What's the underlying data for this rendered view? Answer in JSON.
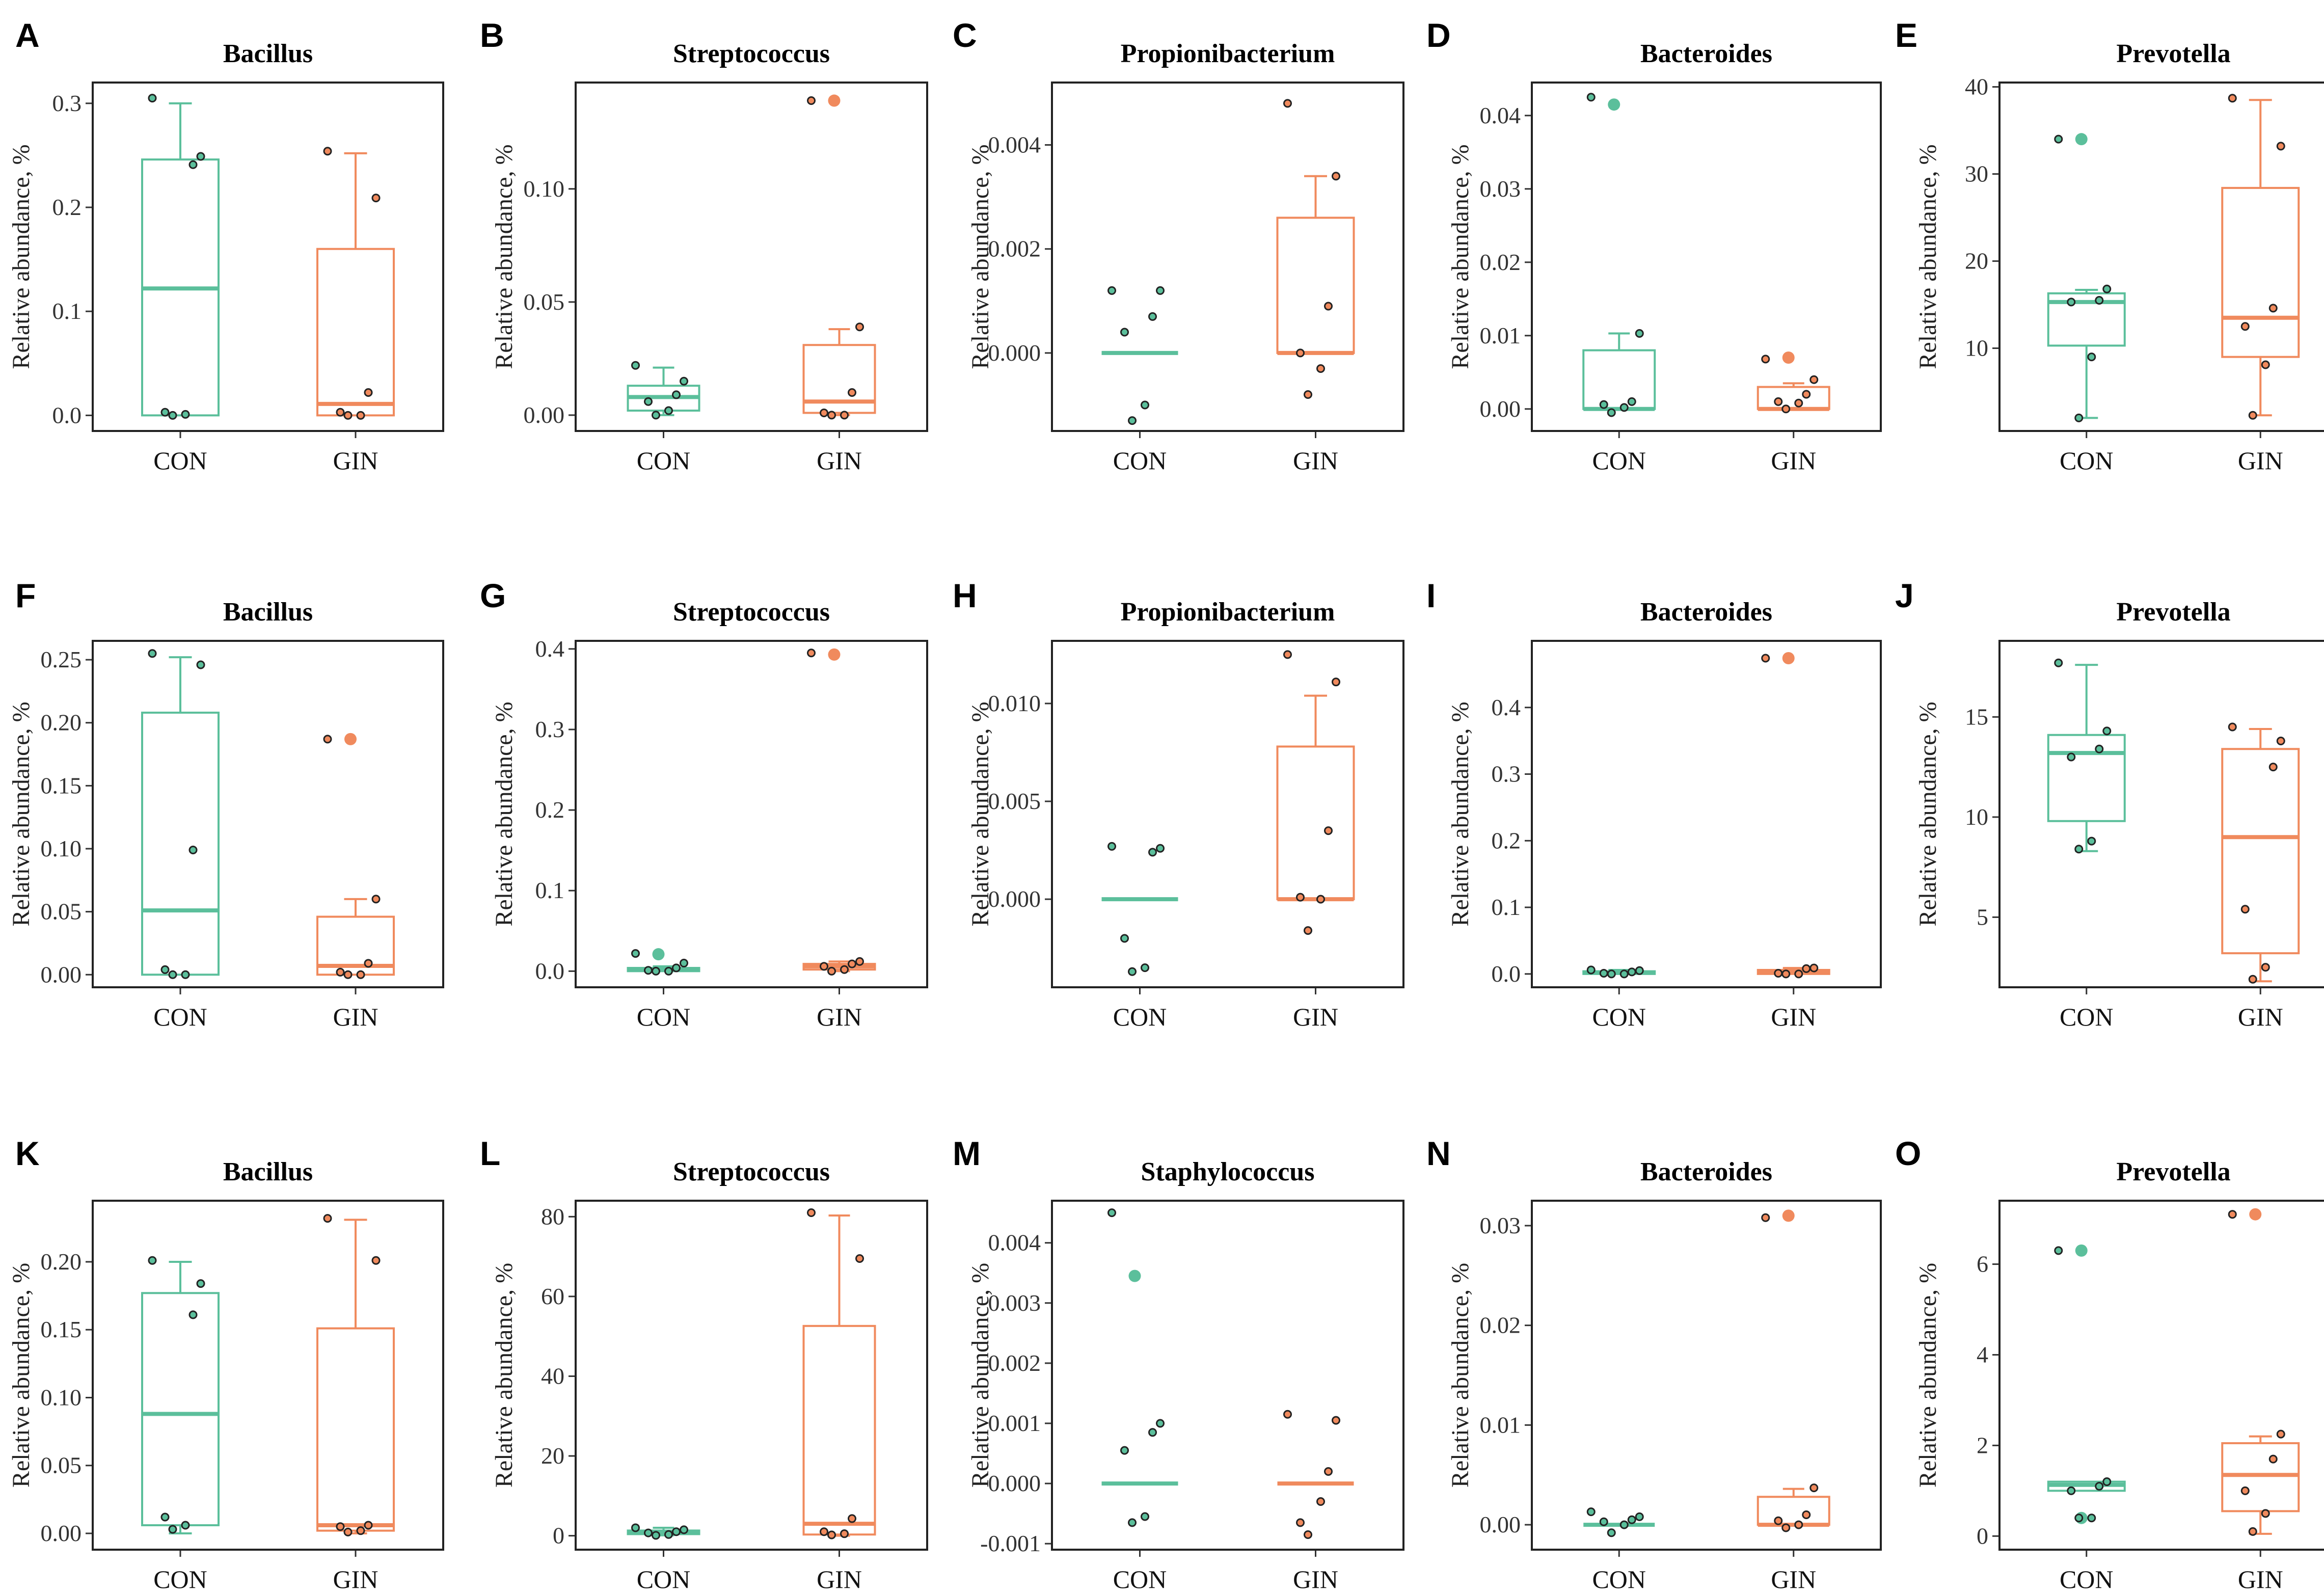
{
  "colors": {
    "con": "#5bbf9b",
    "gin": "#f08a5d",
    "point_stroke": "#222222"
  },
  "chart_data": [
    {
      "letter": "A",
      "title": "Bacillus",
      "type": "box",
      "ylabel": "Relative abundance, %",
      "ylim": [
        -0.015,
        0.32
      ],
      "ticks": [
        0.0,
        0.1,
        0.2,
        0.3
      ],
      "tick_labels": [
        "0.0",
        "0.1",
        "0.2",
        "0.3"
      ],
      "categories": [
        "CON",
        "GIN"
      ],
      "groups": [
        {
          "name": "CON",
          "q1": 0.0,
          "median": 0.122,
          "q3": 0.246,
          "whisker_low": 0.0,
          "whisker_high": 0.3,
          "points": [
            0.305,
            0.249,
            0.241,
            0.003,
            0.001,
            0.0
          ],
          "outliers": []
        },
        {
          "name": "GIN",
          "q1": 0.0,
          "median": 0.011,
          "q3": 0.16,
          "whisker_low": 0.0,
          "whisker_high": 0.252,
          "points": [
            0.254,
            0.209,
            0.022,
            0.003,
            0.0,
            0.0
          ],
          "outliers": []
        }
      ]
    },
    {
      "letter": "B",
      "title": "Streptococcus",
      "type": "box",
      "ylabel": "Relative abundance, %",
      "ylim": [
        -0.007,
        0.147
      ],
      "ticks": [
        0.0,
        0.05,
        0.1
      ],
      "tick_labels": [
        "0.00",
        "0.05",
        "0.10"
      ],
      "categories": [
        "CON",
        "GIN"
      ],
      "groups": [
        {
          "name": "CON",
          "q1": 0.002,
          "median": 0.008,
          "q3": 0.013,
          "whisker_low": 0.0,
          "whisker_high": 0.021,
          "points": [
            0.022,
            0.015,
            0.009,
            0.006,
            0.002,
            0.0
          ],
          "outliers": []
        },
        {
          "name": "GIN",
          "q1": 0.001,
          "median": 0.006,
          "q3": 0.031,
          "whisker_low": 0.0,
          "whisker_high": 0.038,
          "points": [
            0.139,
            0.039,
            0.01,
            0.001,
            0.0,
            0.0
          ],
          "outliers": [
            0.139
          ]
        }
      ]
    },
    {
      "letter": "C",
      "title": "Propionibacterium",
      "type": "box",
      "ylabel": "Relative abundance, %",
      "ylim": [
        -0.0015,
        0.0052
      ],
      "ticks": [
        0.0,
        0.002,
        0.004
      ],
      "tick_labels": [
        "0.000",
        "0.002",
        "0.004"
      ],
      "categories": [
        "CON",
        "GIN"
      ],
      "groups": [
        {
          "name": "CON",
          "q1": 0.0,
          "median": 0.0,
          "q3": 0.0,
          "whisker_low": 0.0,
          "whisker_high": 0.0,
          "points": [
            0.0012,
            0.0012,
            0.0007,
            0.0004,
            -0.001,
            -0.0013
          ],
          "outliers": []
        },
        {
          "name": "GIN",
          "q1": 0.0,
          "median": 0.0,
          "q3": 0.0026,
          "whisker_low": 0.0,
          "whisker_high": 0.0034,
          "points": [
            0.0048,
            0.0034,
            0.0009,
            0.0,
            -0.0003,
            -0.0008
          ],
          "outliers": []
        }
      ]
    },
    {
      "letter": "D",
      "title": "Bacteroides",
      "type": "box",
      "ylabel": "Relative abundance, %",
      "ylim": [
        -0.003,
        0.0445
      ],
      "ticks": [
        0.0,
        0.01,
        0.02,
        0.03,
        0.04
      ],
      "tick_labels": [
        "0.00",
        "0.01",
        "0.02",
        "0.03",
        "0.04"
      ],
      "categories": [
        "CON",
        "GIN"
      ],
      "groups": [
        {
          "name": "CON",
          "q1": 0.0,
          "median": 0.0,
          "q3": 0.008,
          "whisker_low": 0.0,
          "whisker_high": 0.0103,
          "points": [
            0.0425,
            0.0103,
            0.001,
            0.0006,
            0.0002,
            -0.0005
          ],
          "outliers": [
            0.0415
          ]
        },
        {
          "name": "GIN",
          "q1": 0.0,
          "median": 0.0,
          "q3": 0.003,
          "whisker_low": 0.0,
          "whisker_high": 0.0035,
          "points": [
            0.0068,
            0.004,
            0.002,
            0.001,
            0.0008,
            0.0
          ],
          "outliers": [
            0.007
          ]
        }
      ]
    },
    {
      "letter": "E",
      "title": "Prevotella",
      "type": "box",
      "ylabel": "Relative abundance, %",
      "ylim": [
        0.5,
        40.5
      ],
      "ticks": [
        10,
        20,
        30,
        40
      ],
      "tick_labels": [
        "10",
        "20",
        "30",
        "40"
      ],
      "categories": [
        "CON",
        "GIN"
      ],
      "groups": [
        {
          "name": "CON",
          "q1": 10.3,
          "median": 15.3,
          "q3": 16.3,
          "whisker_low": 2.0,
          "whisker_high": 16.7,
          "points": [
            34.0,
            16.8,
            15.5,
            15.3,
            9.0,
            2.0
          ],
          "outliers": [
            34.0
          ]
        },
        {
          "name": "GIN",
          "q1": 9.0,
          "median": 13.5,
          "q3": 28.4,
          "whisker_low": 2.3,
          "whisker_high": 38.5,
          "points": [
            38.7,
            33.2,
            14.6,
            12.5,
            8.1,
            2.3
          ],
          "outliers": []
        }
      ]
    },
    {
      "letter": "F",
      "title": "Bacillus",
      "type": "box",
      "ylabel": "Relative abundance, %",
      "ylim": [
        -0.01,
        0.265
      ],
      "ticks": [
        0.0,
        0.05,
        0.1,
        0.15,
        0.2,
        0.25
      ],
      "tick_labels": [
        "0.00",
        "0.05",
        "0.10",
        "0.15",
        "0.20",
        "0.25"
      ],
      "categories": [
        "CON",
        "GIN"
      ],
      "groups": [
        {
          "name": "CON",
          "q1": 0.0,
          "median": 0.051,
          "q3": 0.208,
          "whisker_low": 0.0,
          "whisker_high": 0.252,
          "points": [
            0.255,
            0.246,
            0.099,
            0.004,
            0.0,
            0.0
          ],
          "outliers": []
        },
        {
          "name": "GIN",
          "q1": 0.0,
          "median": 0.007,
          "q3": 0.046,
          "whisker_low": 0.0,
          "whisker_high": 0.06,
          "points": [
            0.187,
            0.06,
            0.009,
            0.002,
            0.0,
            0.0
          ],
          "outliers": [
            0.187
          ]
        }
      ]
    },
    {
      "letter": "G",
      "title": "Streptococcus",
      "type": "box",
      "ylabel": "Relative abundance, %",
      "ylim": [
        -0.02,
        0.41
      ],
      "ticks": [
        0.0,
        0.1,
        0.2,
        0.3,
        0.4
      ],
      "tick_labels": [
        "0.0",
        "0.1",
        "0.2",
        "0.3",
        "0.4"
      ],
      "categories": [
        "CON",
        "GIN"
      ],
      "groups": [
        {
          "name": "CON",
          "q1": 0.0,
          "median": 0.002,
          "q3": 0.004,
          "whisker_low": 0.0,
          "whisker_high": 0.006,
          "points": [
            0.022,
            0.01,
            0.004,
            0.001,
            0.0,
            0.0
          ],
          "outliers": [
            0.021
          ]
        },
        {
          "name": "GIN",
          "q1": 0.002,
          "median": 0.006,
          "q3": 0.009,
          "whisker_low": 0.0,
          "whisker_high": 0.012,
          "points": [
            0.395,
            0.012,
            0.009,
            0.006,
            0.002,
            0.0
          ],
          "outliers": [
            0.393
          ]
        }
      ]
    },
    {
      "letter": "H",
      "title": "Propionibacterium",
      "type": "box",
      "ylabel": "Relative abundance, %",
      "ylim": [
        -0.0045,
        0.0132
      ],
      "ticks": [
        0.0,
        0.005,
        0.01
      ],
      "tick_labels": [
        "0.000",
        "0.005",
        "0.010"
      ],
      "categories": [
        "CON",
        "GIN"
      ],
      "groups": [
        {
          "name": "CON",
          "q1": 0.0,
          "median": 0.0,
          "q3": 0.0,
          "whisker_low": 0.0,
          "whisker_high": 0.0,
          "points": [
            0.0027,
            0.0026,
            0.0024,
            -0.002,
            -0.0035,
            -0.0037
          ],
          "outliers": []
        },
        {
          "name": "GIN",
          "q1": 0.0,
          "median": 0.0,
          "q3": 0.0078,
          "whisker_low": 0.0,
          "whisker_high": 0.0104,
          "points": [
            0.0125,
            0.0111,
            0.0035,
            0.0001,
            0.0,
            -0.0016
          ],
          "outliers": []
        }
      ]
    },
    {
      "letter": "I",
      "title": "Bacteroides",
      "type": "box",
      "ylabel": "Relative abundance, %",
      "ylim": [
        -0.02,
        0.5
      ],
      "ticks": [
        0.0,
        0.1,
        0.2,
        0.3,
        0.4
      ],
      "tick_labels": [
        "0.0",
        "0.1",
        "0.2",
        "0.3",
        "0.4"
      ],
      "categories": [
        "CON",
        "GIN"
      ],
      "groups": [
        {
          "name": "CON",
          "q1": 0.0,
          "median": 0.002,
          "q3": 0.004,
          "whisker_low": 0.0,
          "whisker_high": 0.006,
          "points": [
            0.006,
            0.005,
            0.003,
            0.001,
            0.0,
            0.0
          ],
          "outliers": []
        },
        {
          "name": "GIN",
          "q1": 0.0,
          "median": 0.003,
          "q3": 0.006,
          "whisker_low": 0.0,
          "whisker_high": 0.009,
          "points": [
            0.474,
            0.009,
            0.008,
            0.001,
            0.0,
            0.0
          ],
          "outliers": [
            0.474
          ]
        }
      ]
    },
    {
      "letter": "J",
      "title": "Prevotella",
      "type": "box",
      "ylabel": "Relative abundance, %",
      "ylim": [
        1.5,
        18.8
      ],
      "ticks": [
        5,
        10,
        15
      ],
      "tick_labels": [
        "5",
        "10",
        "15"
      ],
      "categories": [
        "CON",
        "GIN"
      ],
      "groups": [
        {
          "name": "CON",
          "q1": 9.8,
          "median": 13.2,
          "q3": 14.1,
          "whisker_low": 8.3,
          "whisker_high": 17.6,
          "points": [
            17.7,
            14.3,
            13.4,
            13.0,
            8.8,
            8.4
          ],
          "outliers": []
        },
        {
          "name": "GIN",
          "q1": 3.2,
          "median": 9.0,
          "q3": 13.4,
          "whisker_low": 1.8,
          "whisker_high": 14.4,
          "points": [
            14.5,
            13.8,
            12.5,
            5.4,
            2.5,
            1.9
          ],
          "outliers": []
        }
      ]
    },
    {
      "letter": "K",
      "title": "Bacillus",
      "type": "box",
      "ylabel": "Relative abundance, %",
      "ylim": [
        -0.012,
        0.245
      ],
      "ticks": [
        0.0,
        0.05,
        0.1,
        0.15,
        0.2
      ],
      "tick_labels": [
        "0.00",
        "0.05",
        "0.10",
        "0.15",
        "0.20"
      ],
      "categories": [
        "CON",
        "GIN"
      ],
      "groups": [
        {
          "name": "CON",
          "q1": 0.006,
          "median": 0.088,
          "q3": 0.177,
          "whisker_low": 0.0,
          "whisker_high": 0.2,
          "points": [
            0.201,
            0.184,
            0.161,
            0.012,
            0.006,
            0.003
          ],
          "outliers": []
        },
        {
          "name": "GIN",
          "q1": 0.002,
          "median": 0.006,
          "q3": 0.151,
          "whisker_low": 0.0,
          "whisker_high": 0.231,
          "points": [
            0.232,
            0.201,
            0.006,
            0.005,
            0.002,
            0.001
          ],
          "outliers": []
        }
      ]
    },
    {
      "letter": "L",
      "title": "Streptococcus",
      "type": "box",
      "ylabel": "Relative abundance, %",
      "ylim": [
        -3.5,
        84
      ],
      "ticks": [
        0,
        20,
        40,
        60,
        80
      ],
      "tick_labels": [
        "0",
        "20",
        "40",
        "60",
        "80"
      ],
      "categories": [
        "CON",
        "GIN"
      ],
      "groups": [
        {
          "name": "CON",
          "q1": 0.4,
          "median": 0.8,
          "q3": 1.3,
          "whisker_low": 0.1,
          "whisker_high": 2.0,
          "points": [
            2.0,
            1.5,
            1.0,
            0.7,
            0.3,
            0.1
          ],
          "outliers": []
        },
        {
          "name": "GIN",
          "q1": 0.3,
          "median": 3.0,
          "q3": 52.6,
          "whisker_low": 0.0,
          "whisker_high": 80.3,
          "points": [
            81.0,
            69.5,
            4.3,
            1.0,
            0.5,
            0.2
          ],
          "outliers": []
        }
      ]
    },
    {
      "letter": "M",
      "title": "Staphylococcus",
      "type": "box",
      "ylabel": "Relative abundance, %",
      "ylim": [
        -0.0011,
        0.0047
      ],
      "ticks": [
        -0.001,
        0.0,
        0.001,
        0.002,
        0.003,
        0.004
      ],
      "tick_labels": [
        "-0.001",
        "0.000",
        "0.001",
        "0.002",
        "0.003",
        "0.004"
      ],
      "categories": [
        "CON",
        "GIN"
      ],
      "groups": [
        {
          "name": "CON",
          "q1": 0.0,
          "median": 0.0,
          "q3": 0.0,
          "whisker_low": 0.0,
          "whisker_high": 0.0,
          "points": [
            0.0045,
            0.001,
            0.00085,
            0.00055,
            -0.00055,
            -0.00065
          ],
          "outliers": [
            0.00345
          ]
        },
        {
          "name": "GIN",
          "q1": 0.0,
          "median": 0.0,
          "q3": 0.0,
          "whisker_low": 0.0,
          "whisker_high": 0.0,
          "points": [
            0.00115,
            0.00105,
            0.0002,
            -0.00065,
            -0.0003,
            -0.00085
          ],
          "outliers": []
        }
      ]
    },
    {
      "letter": "N",
      "title": "Bacteroides",
      "type": "box",
      "ylabel": "Relative abundance, %",
      "ylim": [
        -0.0025,
        0.0325
      ],
      "ticks": [
        0.0,
        0.01,
        0.02,
        0.03
      ],
      "tick_labels": [
        "0.00",
        "0.01",
        "0.02",
        "0.03"
      ],
      "categories": [
        "CON",
        "GIN"
      ],
      "groups": [
        {
          "name": "CON",
          "q1": 0.0,
          "median": 0.0,
          "q3": 0.0,
          "whisker_low": 0.0,
          "whisker_high": 0.0,
          "points": [
            0.0013,
            0.0008,
            0.0005,
            0.0003,
            0.0,
            -0.0008
          ],
          "outliers": []
        },
        {
          "name": "GIN",
          "q1": 0.0,
          "median": 0.0,
          "q3": 0.0028,
          "whisker_low": 0.0,
          "whisker_high": 0.0036,
          "points": [
            0.0308,
            0.0037,
            0.001,
            0.0004,
            0.0,
            -0.0003
          ],
          "outliers": [
            0.031
          ]
        }
      ]
    },
    {
      "letter": "O",
      "title": "Prevotella",
      "type": "box",
      "ylabel": "Relative abundance, %",
      "ylim": [
        -0.3,
        7.4
      ],
      "ticks": [
        0,
        2,
        4,
        6
      ],
      "tick_labels": [
        "0",
        "2",
        "4",
        "6"
      ],
      "categories": [
        "CON",
        "GIN"
      ],
      "groups": [
        {
          "name": "CON",
          "q1": 1.0,
          "median": 1.13,
          "q3": 1.2,
          "whisker_low": 1.0,
          "whisker_high": 1.2,
          "points": [
            6.3,
            1.2,
            1.1,
            1.0,
            0.4,
            0.4
          ],
          "outliers": [
            6.3,
            0.4
          ]
        },
        {
          "name": "GIN",
          "q1": 0.55,
          "median": 1.35,
          "q3": 2.05,
          "whisker_low": 0.05,
          "whisker_high": 2.2,
          "points": [
            7.1,
            2.25,
            1.7,
            1.0,
            0.5,
            0.1
          ],
          "outliers": [
            7.1
          ]
        }
      ]
    }
  ]
}
